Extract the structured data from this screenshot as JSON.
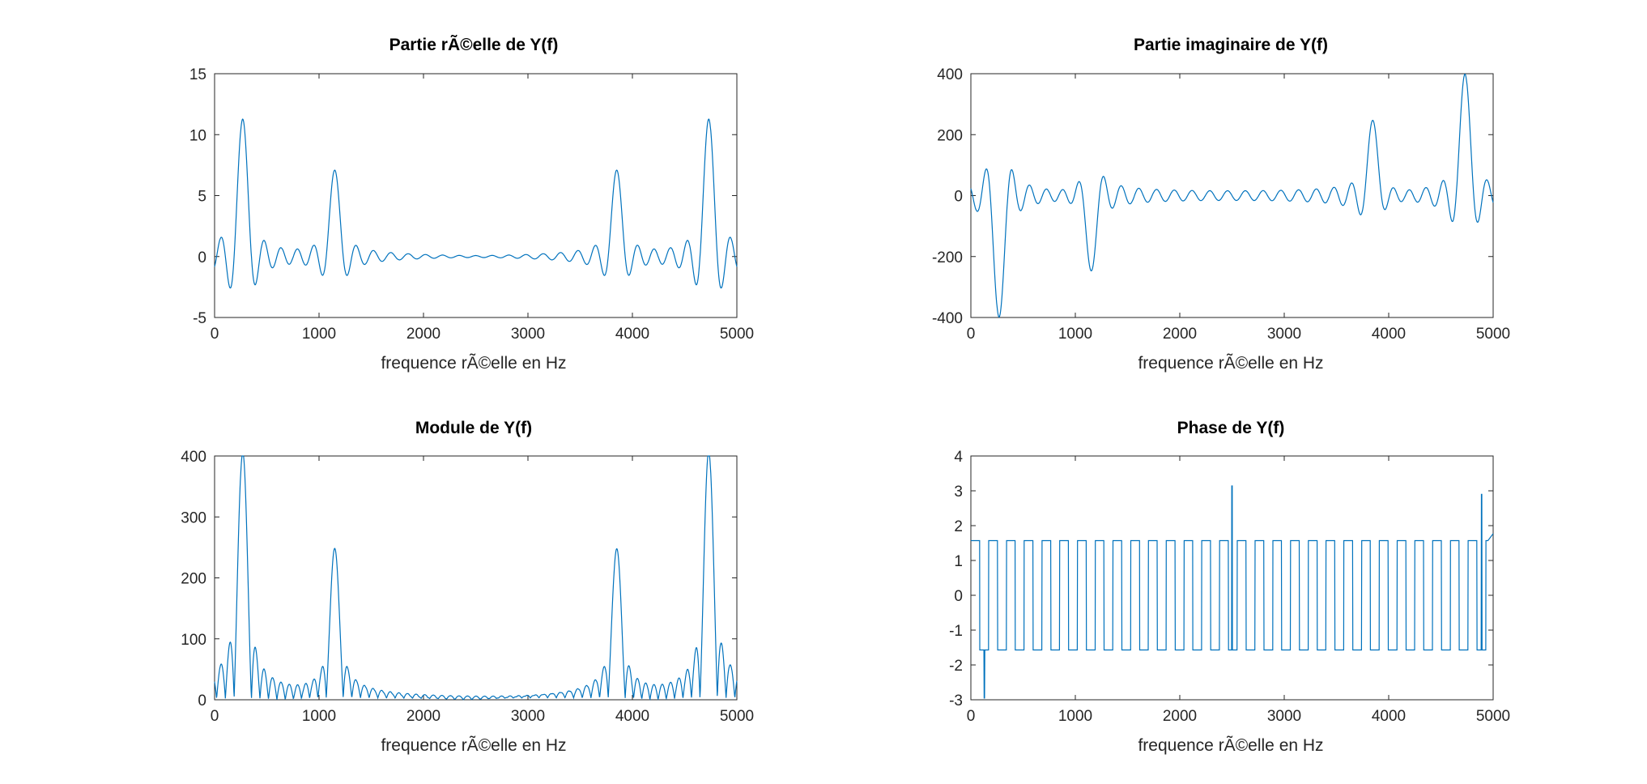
{
  "chart_data": [
    {
      "type": "line",
      "title": "Partie rÃ©elle de Y(f)",
      "xlabel": "frequence rÃ©elle en Hz",
      "ylabel": "",
      "xlim": [
        0,
        5000
      ],
      "ylim": [
        -5,
        15
      ],
      "xticks": [
        "0",
        "1000",
        "2000",
        "3000",
        "4000",
        "5000"
      ],
      "yticks": [
        "-5",
        "0",
        "5",
        "10",
        "15"
      ],
      "color": "#0072bd",
      "peaks": [
        {
          "x": 270,
          "y": 11
        },
        {
          "x": 1150,
          "y": 6.8
        },
        {
          "x": 3850,
          "y": 6.8
        },
        {
          "x": 4730,
          "y": 11
        }
      ]
    },
    {
      "type": "line",
      "title": "Partie imaginaire de Y(f)",
      "xlabel": "frequence rÃ©elle en Hz",
      "ylabel": "",
      "xlim": [
        0,
        5000
      ],
      "ylim": [
        -400,
        400
      ],
      "xticks": [
        "0",
        "1000",
        "2000",
        "3000",
        "4000",
        "5000"
      ],
      "yticks": [
        "-400",
        "-200",
        "0",
        "200",
        "400"
      ],
      "color": "#0072bd",
      "peaks": [
        {
          "x": 270,
          "y": -395
        },
        {
          "x": 1150,
          "y": -235
        },
        {
          "x": 3850,
          "y": 235
        },
        {
          "x": 4730,
          "y": 395
        }
      ]
    },
    {
      "type": "line",
      "title": "Module de Y(f)",
      "xlabel": "frequence rÃ©elle en Hz",
      "ylabel": "",
      "xlim": [
        0,
        5000
      ],
      "ylim": [
        0,
        400
      ],
      "xticks": [
        "0",
        "1000",
        "2000",
        "3000",
        "4000",
        "5000"
      ],
      "yticks": [
        "0",
        "100",
        "200",
        "300",
        "400"
      ],
      "color": "#0072bd",
      "peaks": [
        {
          "x": 270,
          "y": 395
        },
        {
          "x": 1150,
          "y": 235
        },
        {
          "x": 3850,
          "y": 235
        },
        {
          "x": 4730,
          "y": 395
        }
      ]
    },
    {
      "type": "line",
      "title": "Phase de Y(f)",
      "xlabel": "frequence rÃ©elle en Hz",
      "ylabel": "",
      "xlim": [
        0,
        5000
      ],
      "ylim": [
        -3,
        4
      ],
      "xticks": [
        "0",
        "1000",
        "2000",
        "3000",
        "4000",
        "5000"
      ],
      "yticks": [
        "-3",
        "-2",
        "-1",
        "0",
        "1",
        "2",
        "3",
        "4"
      ],
      "color": "#0072bd",
      "levels": [
        1.57,
        -1.57
      ],
      "spikes": [
        {
          "x": 130,
          "y": -2.95
        },
        {
          "x": 2500,
          "y": 3.14
        },
        {
          "x": 4890,
          "y": 2.9
        }
      ]
    }
  ]
}
